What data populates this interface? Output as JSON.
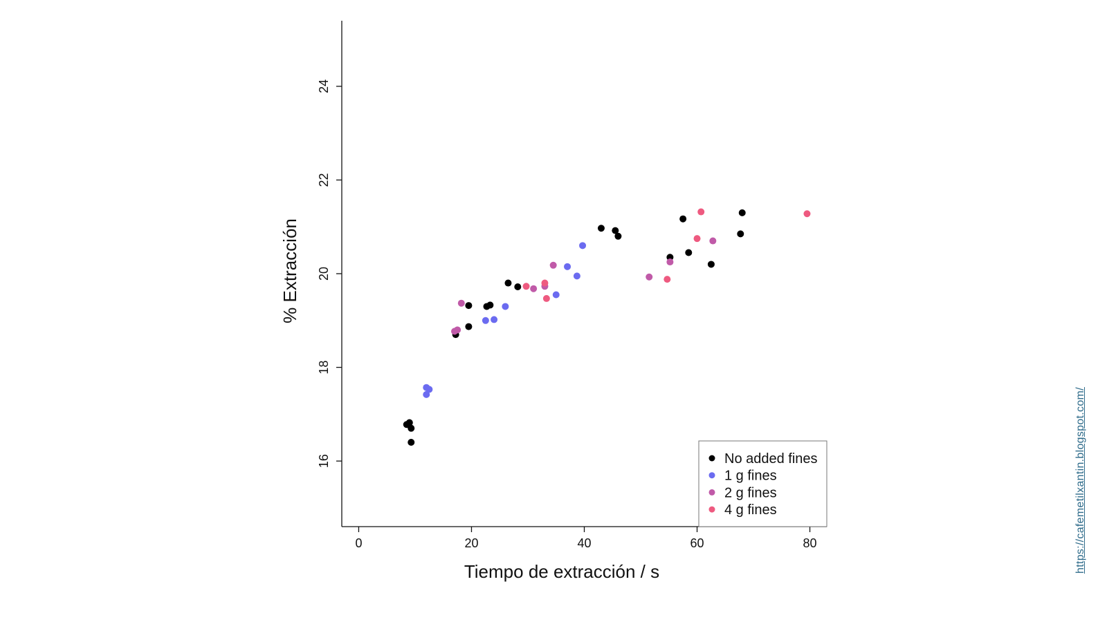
{
  "source_link": "https://cafemetilxantin.blogspot.com/",
  "chart_data": {
    "type": "scatter",
    "title": "",
    "xlabel": "Tiempo de extracción / s",
    "ylabel": "% Extracción",
    "xlim": [
      -3,
      83
    ],
    "ylim": [
      14.6,
      25.4
    ],
    "xticks": [
      0,
      20,
      40,
      60,
      80
    ],
    "yticks": [
      16,
      18,
      20,
      22,
      24
    ],
    "grid": false,
    "legend_position": "bottom-right",
    "series": [
      {
        "name": "No added fines",
        "color": "#000000",
        "points": [
          [
            8.5,
            16.78
          ],
          [
            9.0,
            16.82
          ],
          [
            9.3,
            16.7
          ],
          [
            9.3,
            16.4
          ],
          [
            17.2,
            18.7
          ],
          [
            19.5,
            19.32
          ],
          [
            19.5,
            18.87
          ],
          [
            22.7,
            19.3
          ],
          [
            23.3,
            19.33
          ],
          [
            26.5,
            19.8
          ],
          [
            28.2,
            19.72
          ],
          [
            43.0,
            20.97
          ],
          [
            45.5,
            20.92
          ],
          [
            46.0,
            20.8
          ],
          [
            55.2,
            20.35
          ],
          [
            57.5,
            21.17
          ],
          [
            58.5,
            20.45
          ],
          [
            62.5,
            20.2
          ],
          [
            67.7,
            20.85
          ],
          [
            68.0,
            21.3
          ]
        ]
      },
      {
        "name": "1 g fines",
        "color": "#6b6bf0",
        "points": [
          [
            12.0,
            17.57
          ],
          [
            12.5,
            17.53
          ],
          [
            12.0,
            17.42
          ],
          [
            22.5,
            19.0
          ],
          [
            24.0,
            19.02
          ],
          [
            26.0,
            19.3
          ],
          [
            35.0,
            19.55
          ],
          [
            37.0,
            20.15
          ],
          [
            38.7,
            19.95
          ],
          [
            39.7,
            20.6
          ]
        ]
      },
      {
        "name": "2 g fines",
        "color": "#c05aa8",
        "points": [
          [
            17.0,
            18.77
          ],
          [
            17.5,
            18.8
          ],
          [
            18.2,
            19.37
          ],
          [
            31.0,
            19.68
          ],
          [
            33.0,
            19.73
          ],
          [
            34.5,
            20.18
          ],
          [
            51.5,
            19.93
          ],
          [
            55.2,
            20.25
          ],
          [
            62.8,
            20.7
          ]
        ]
      },
      {
        "name": "4 g fines",
        "color": "#ee5a80",
        "points": [
          [
            29.7,
            19.73
          ],
          [
            33.0,
            19.8
          ],
          [
            33.3,
            19.47
          ],
          [
            54.7,
            19.88
          ],
          [
            60.0,
            20.75
          ],
          [
            60.7,
            21.32
          ],
          [
            79.5,
            21.28
          ]
        ]
      }
    ]
  }
}
